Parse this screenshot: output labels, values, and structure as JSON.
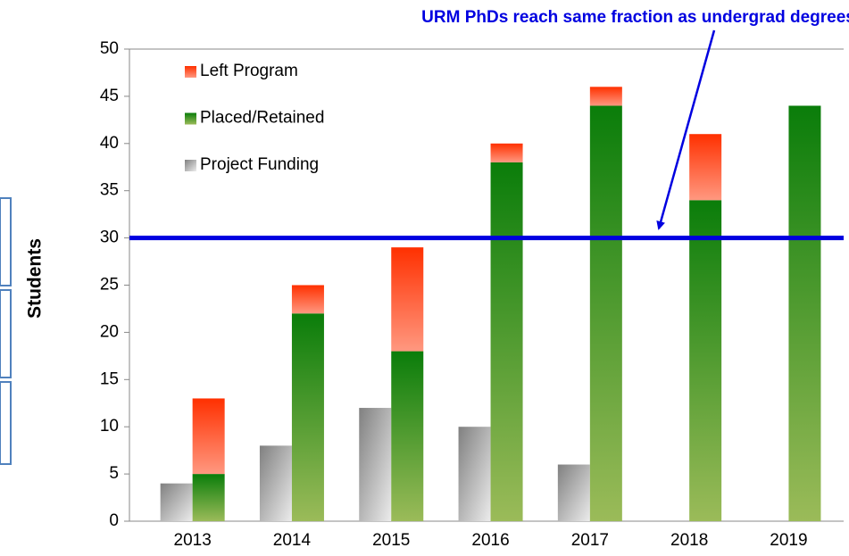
{
  "chart_data": {
    "type": "bar",
    "annotation": "URM PhDs reach same fraction as undergrad degrees",
    "y_label": "Students",
    "categories": [
      "2013",
      "2014",
      "2015",
      "2016",
      "2017",
      "2018",
      "2019"
    ],
    "series": [
      {
        "name": "Left Program",
        "color": "#ff3000",
        "stack": "main",
        "values": [
          8,
          3,
          11,
          2,
          2,
          7,
          null
        ]
      },
      {
        "name": "Placed/Retained",
        "color": "#0a7d0a",
        "stack": "main",
        "values": [
          5,
          22,
          18,
          38,
          44,
          34,
          44
        ]
      },
      {
        "name": "Project Funding",
        "color": "#808080",
        "stack": "funding",
        "values": [
          4,
          8,
          12,
          10,
          6,
          null,
          null
        ]
      }
    ],
    "reference_line": {
      "value": 30,
      "color": "#0000e0"
    },
    "ylim": [
      0,
      50
    ],
    "yticks": [
      0,
      5,
      10,
      15,
      20,
      25,
      30,
      35,
      40,
      45,
      50
    ],
    "grid": false,
    "legend": "upper left"
  }
}
